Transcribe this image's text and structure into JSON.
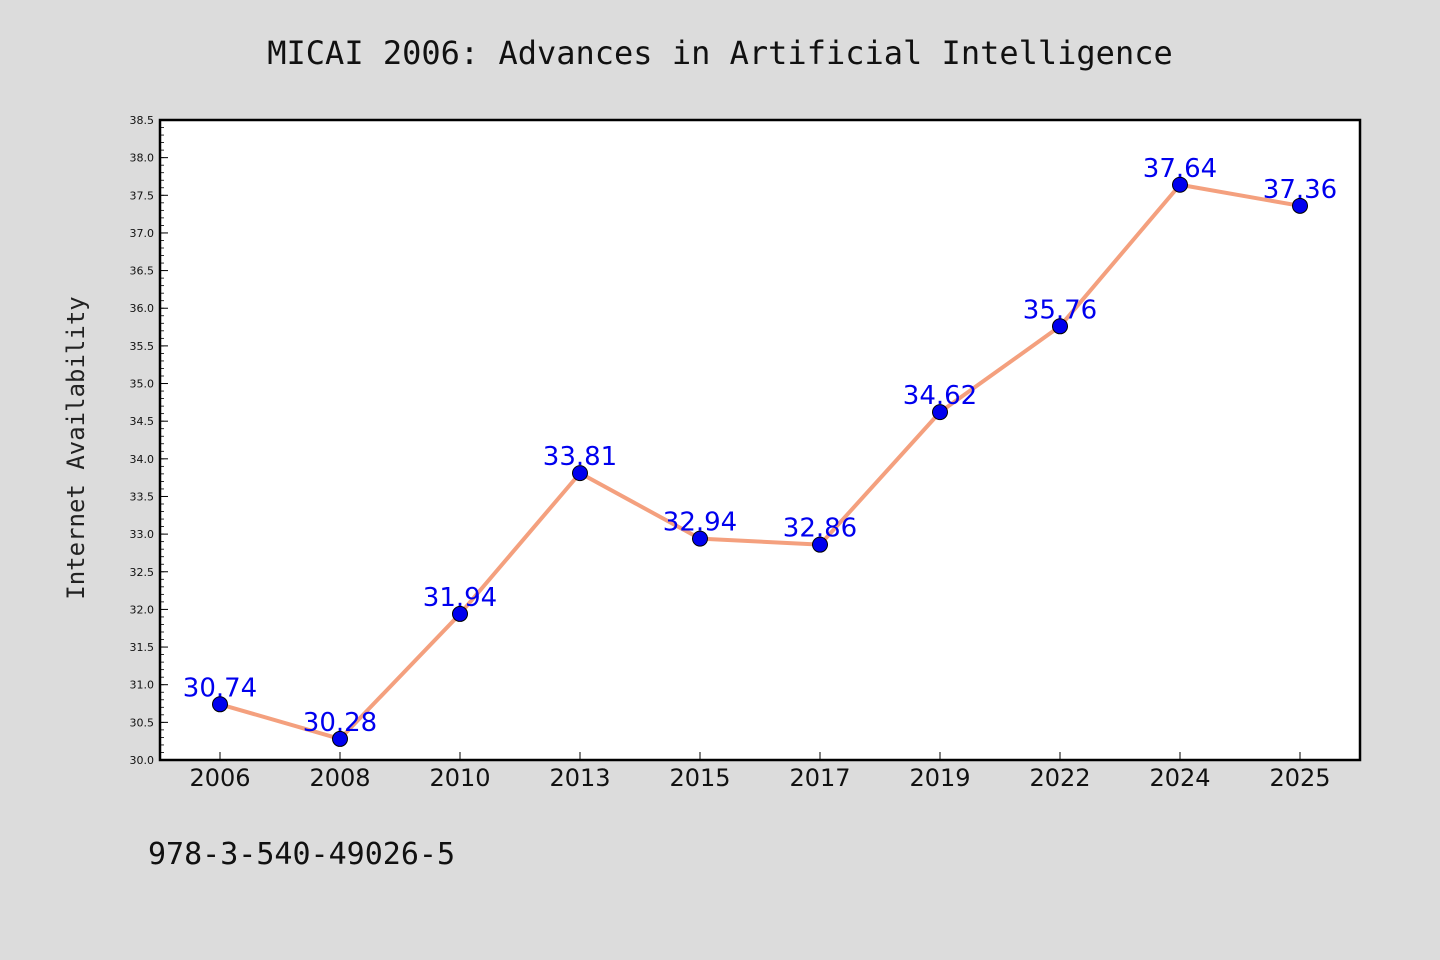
{
  "chart_data": {
    "type": "line",
    "title": "MICAI 2006: Advances in Artificial Intelligence",
    "xlabel": "",
    "ylabel": "Internet Availability",
    "categories": [
      "2006",
      "2008",
      "2010",
      "2013",
      "2015",
      "2017",
      "2019",
      "2022",
      "2024",
      "2025"
    ],
    "series": [
      {
        "values": [
          30.74,
          30.28,
          31.94,
          33.81,
          32.94,
          32.86,
          34.62,
          35.76,
          37.64,
          37.36
        ]
      }
    ],
    "data_labels": [
      "30.74",
      "30.28",
      "31.94",
      "33.81",
      "32.94",
      "32.86",
      "34.62",
      "35.76",
      "37.64",
      "37.36"
    ],
    "ylim": [
      30.0,
      38.5
    ],
    "yticks": [
      "30.0",
      "30.5",
      "31.0",
      "31.5",
      "32.0",
      "32.5",
      "33.0",
      "33.5",
      "34.0",
      "34.5",
      "35.0",
      "35.5",
      "36.0",
      "36.5",
      "37.0",
      "37.5",
      "38.0",
      "38.5"
    ],
    "grid": false,
    "colors": {
      "line": "#f4a07e",
      "marker": "#0000ee",
      "label": "#0000ee",
      "background": "#dcdcdc",
      "plot_background": "#ffffff"
    }
  },
  "footer": {
    "text": "978-3-540-49026-5"
  }
}
